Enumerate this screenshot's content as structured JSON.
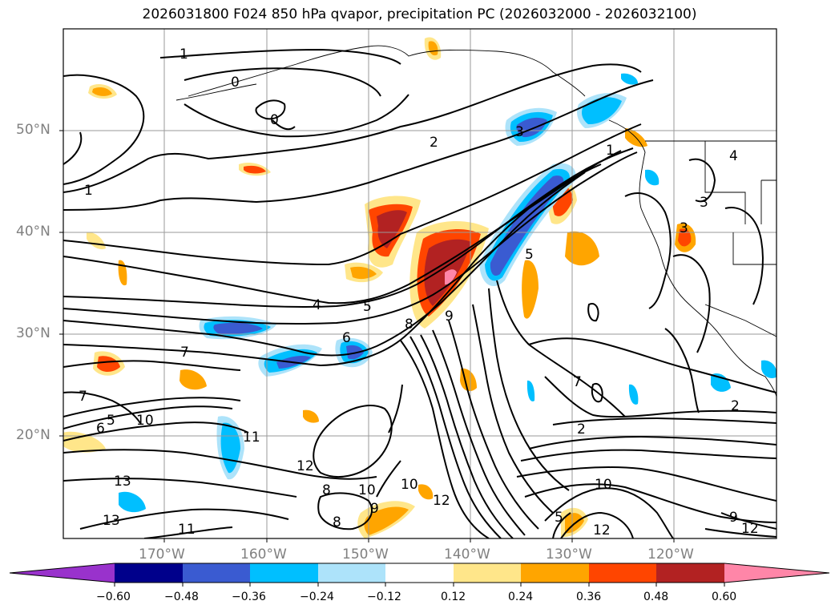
{
  "title": "2026031800 F024 850 hPa qvapor, precipitation PC (2026032000 - 2026032100)",
  "lat_labels": [
    "50°N",
    "40°N",
    "30°N",
    "20°N"
  ],
  "lon_labels": [
    "170°W",
    "160°W",
    "150°W",
    "140°W",
    "130°W",
    "120°W"
  ],
  "colorbar": {
    "ticks": [
      "−0.60",
      "−0.48",
      "−0.36",
      "−0.24",
      "−0.12",
      "0.12",
      "0.24",
      "0.36",
      "0.48",
      "0.60"
    ],
    "colors": [
      "#9932cc",
      "#00008b",
      "#3a5bd1",
      "#00bfff",
      "#ade3fa",
      "#ffffff",
      "#ffe68a",
      "#ffa500",
      "#ff4500",
      "#b22222",
      "#ff86a8"
    ]
  },
  "contour_labels": [
    "1",
    "0",
    "0",
    "1",
    "2",
    "3",
    "1",
    "4",
    "3",
    "3",
    "4",
    "5",
    "6",
    "7",
    "8",
    "9",
    "5",
    "7",
    "5",
    "10",
    "7",
    "6",
    "11",
    "12",
    "13",
    "13",
    "11",
    "8",
    "10",
    "9",
    "8",
    "10",
    "12",
    "2",
    "2",
    "10",
    "5",
    "12",
    "9",
    "12"
  ]
}
